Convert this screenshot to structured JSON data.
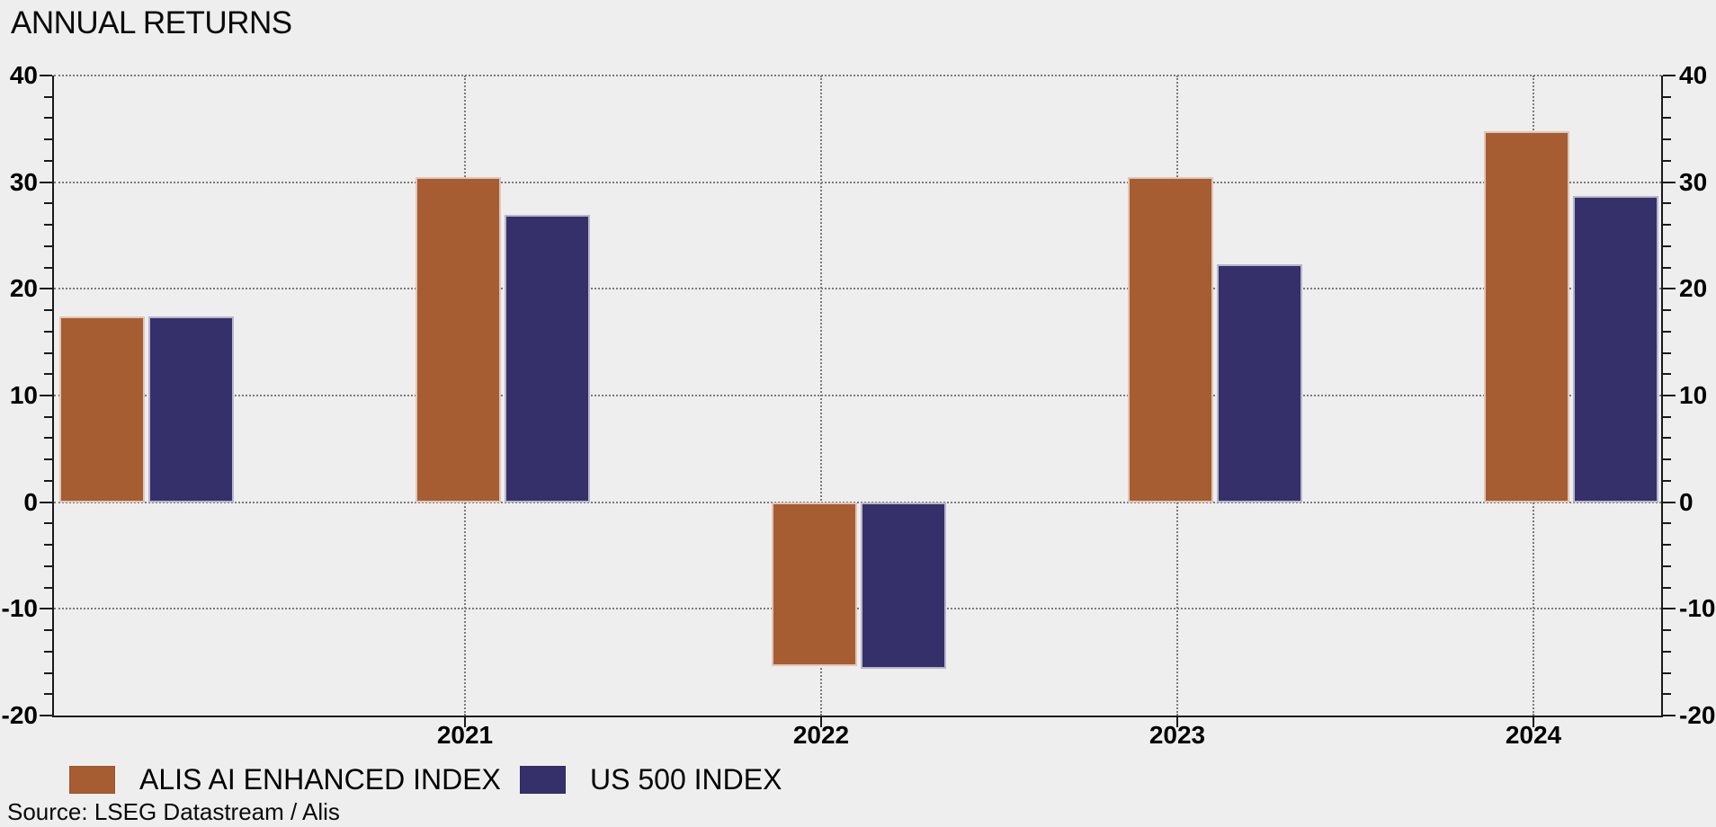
{
  "title": "ANNUAL RETURNS",
  "source_note": "Source: LSEG Datastream / Alis",
  "colors": {
    "background": "#eeeeee",
    "axis": "#1a1a1a",
    "gridline": "#7b7b7b",
    "text": "#000000"
  },
  "chart_data": {
    "type": "bar",
    "title": "ANNUAL RETURNS",
    "categories": [
      "",
      "2021",
      "2022",
      "2023",
      "2024"
    ],
    "series": [
      {
        "name": "ALIS AI ENHANCED INDEX",
        "color": "#a65d32",
        "values": [
          17.4,
          30.5,
          -15.4,
          30.5,
          34.8
        ]
      },
      {
        "name": "US 500 INDEX",
        "color": "#353069",
        "values": [
          17.4,
          26.9,
          -15.6,
          22.3,
          28.7
        ]
      }
    ],
    "ylabel": "",
    "xlabel": "",
    "ylim": [
      -20,
      40
    ],
    "yticks": [
      40,
      30,
      20,
      10,
      0,
      -10,
      -20
    ],
    "minor_tick_step": 2,
    "grid": "dotted horizontal lines at major ticks; dotted vertical lines at year ticks",
    "axis_labels_both_sides": true,
    "legend_position": "bottom-left",
    "source": "Source: LSEG Datastream / Alis"
  }
}
